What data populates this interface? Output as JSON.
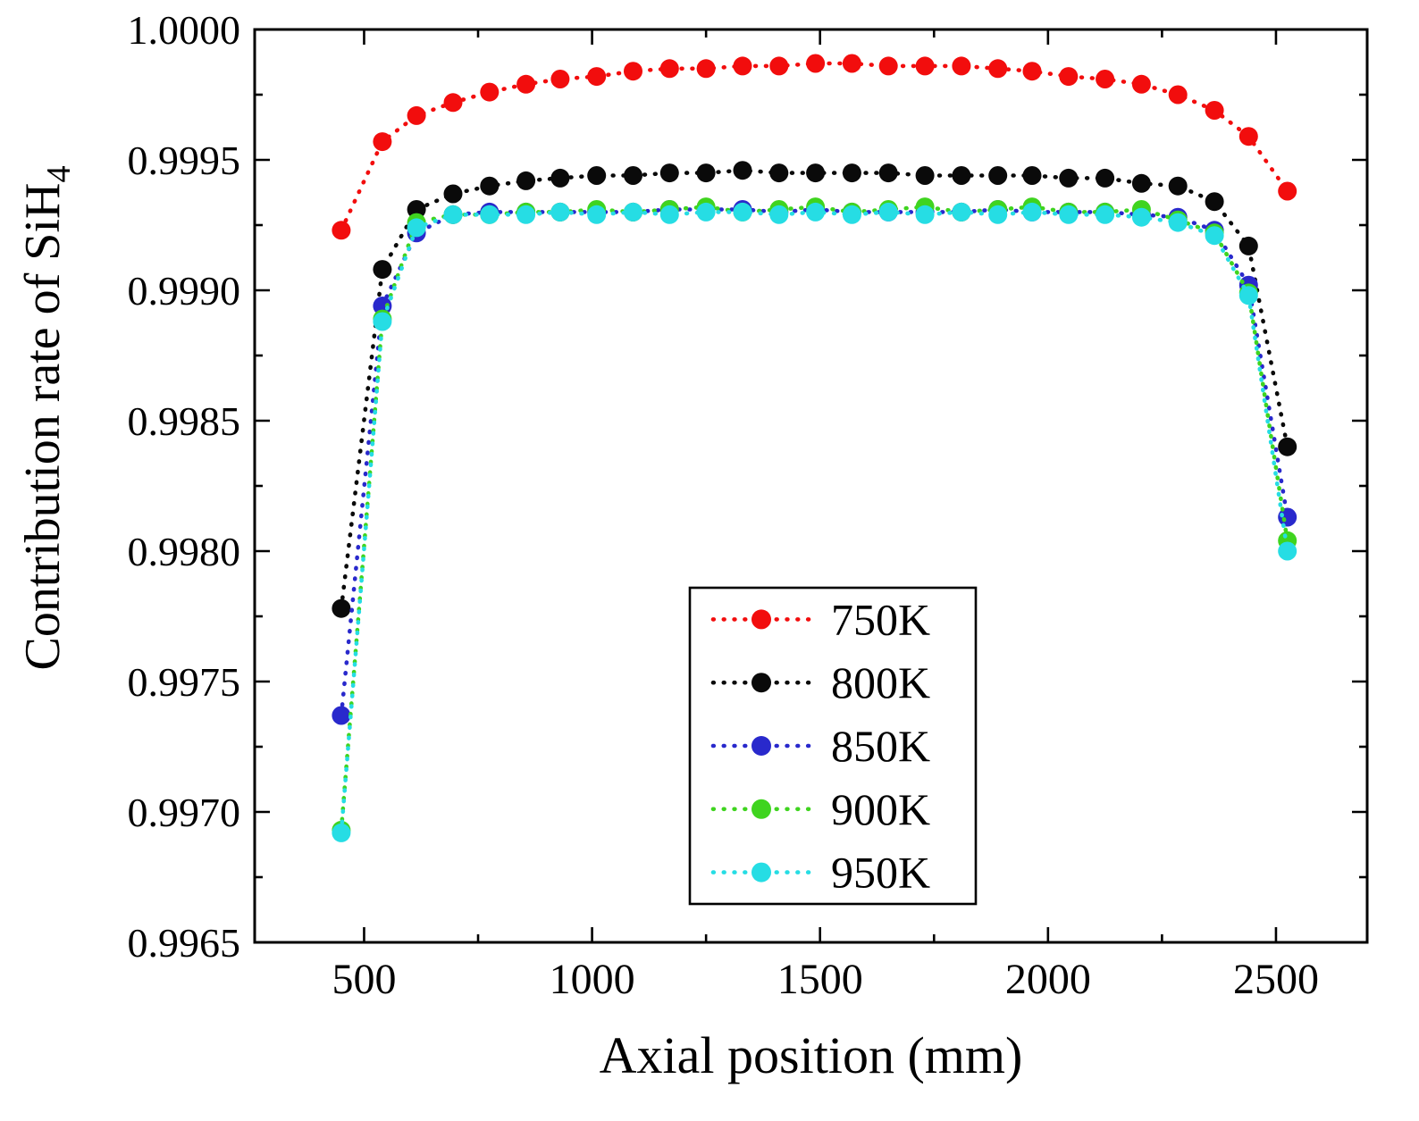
{
  "chart_data": {
    "type": "scatter",
    "title": "",
    "xlabel": "Axial position (mm)",
    "ylabel_text": "Contribution rate of SiH",
    "ylabel_sub": "4",
    "ylabel_full": "Contribution rate of SiH4",
    "xlim": [
      260,
      2700
    ],
    "ylim": [
      0.9965,
      1.0
    ],
    "grid": false,
    "legend_position": "inside-lower-center",
    "xticks": {
      "values": [
        500,
        1000,
        1500,
        2000,
        2500
      ],
      "labels": [
        "500",
        "1000",
        "1500",
        "2000",
        "2500"
      ]
    },
    "yticks": {
      "values": [
        0.9965,
        0.997,
        0.9975,
        0.998,
        0.9985,
        0.999,
        0.9995,
        1.0
      ],
      "labels": [
        "0.9965",
        "0.9970",
        "0.9975",
        "0.9980",
        "0.9985",
        "0.9990",
        "0.9995",
        "1.0000"
      ]
    },
    "x_minor_ticks": [
      750,
      1250,
      1750,
      2250
    ],
    "y_minor_ticks": [
      0.99675,
      0.99725,
      0.99775,
      0.99825,
      0.99875,
      0.99925,
      0.99975
    ],
    "x": [
      450,
      540,
      615,
      695,
      775,
      855,
      930,
      1010,
      1090,
      1170,
      1250,
      1330,
      1410,
      1490,
      1570,
      1650,
      1730,
      1810,
      1890,
      1965,
      2045,
      2125,
      2205,
      2285,
      2365,
      2440,
      2525
    ],
    "series": [
      {
        "name": "750K",
        "color": "#f20d0d",
        "y": [
          0.99923,
          0.99957,
          0.99967,
          0.99972,
          0.99976,
          0.99979,
          0.99981,
          0.99982,
          0.99984,
          0.99985,
          0.99985,
          0.99986,
          0.99986,
          0.99987,
          0.99987,
          0.99986,
          0.99986,
          0.99986,
          0.99985,
          0.99984,
          0.99982,
          0.99981,
          0.99979,
          0.99975,
          0.99969,
          0.99959,
          0.99938
        ]
      },
      {
        "name": "800K",
        "color": "#0a0a0a",
        "y": [
          0.99778,
          0.99908,
          0.99931,
          0.99937,
          0.9994,
          0.99942,
          0.99943,
          0.99944,
          0.99944,
          0.99945,
          0.99945,
          0.99946,
          0.99945,
          0.99945,
          0.99945,
          0.99945,
          0.99944,
          0.99944,
          0.99944,
          0.99944,
          0.99943,
          0.99943,
          0.99941,
          0.9994,
          0.99934,
          0.99917,
          0.9984
        ]
      },
      {
        "name": "850K",
        "color": "#2929cc",
        "y": [
          0.99737,
          0.99894,
          0.99922,
          0.99929,
          0.9993,
          0.9993,
          0.9993,
          0.9993,
          0.9993,
          0.99931,
          0.99931,
          0.99931,
          0.9993,
          0.99931,
          0.9993,
          0.9993,
          0.9993,
          0.9993,
          0.99931,
          0.9993,
          0.9993,
          0.9993,
          0.99929,
          0.99928,
          0.99923,
          0.99902,
          0.99813
        ]
      },
      {
        "name": "900K",
        "color": "#3fd41f",
        "y": [
          0.99693,
          0.99889,
          0.99926,
          0.99929,
          0.99929,
          0.9993,
          0.9993,
          0.99931,
          0.9993,
          0.99931,
          0.99932,
          0.9993,
          0.99931,
          0.99932,
          0.9993,
          0.99931,
          0.99932,
          0.9993,
          0.99931,
          0.99932,
          0.9993,
          0.9993,
          0.99931,
          0.99927,
          0.99922,
          0.99899,
          0.99804
        ]
      },
      {
        "name": "950K",
        "color": "#26dde4",
        "y": [
          0.99692,
          0.99888,
          0.99924,
          0.99929,
          0.99929,
          0.99929,
          0.9993,
          0.99929,
          0.9993,
          0.99929,
          0.9993,
          0.9993,
          0.99929,
          0.9993,
          0.99929,
          0.9993,
          0.99929,
          0.9993,
          0.99929,
          0.9993,
          0.99929,
          0.99929,
          0.99928,
          0.99926,
          0.99921,
          0.99898,
          0.998
        ]
      }
    ]
  }
}
